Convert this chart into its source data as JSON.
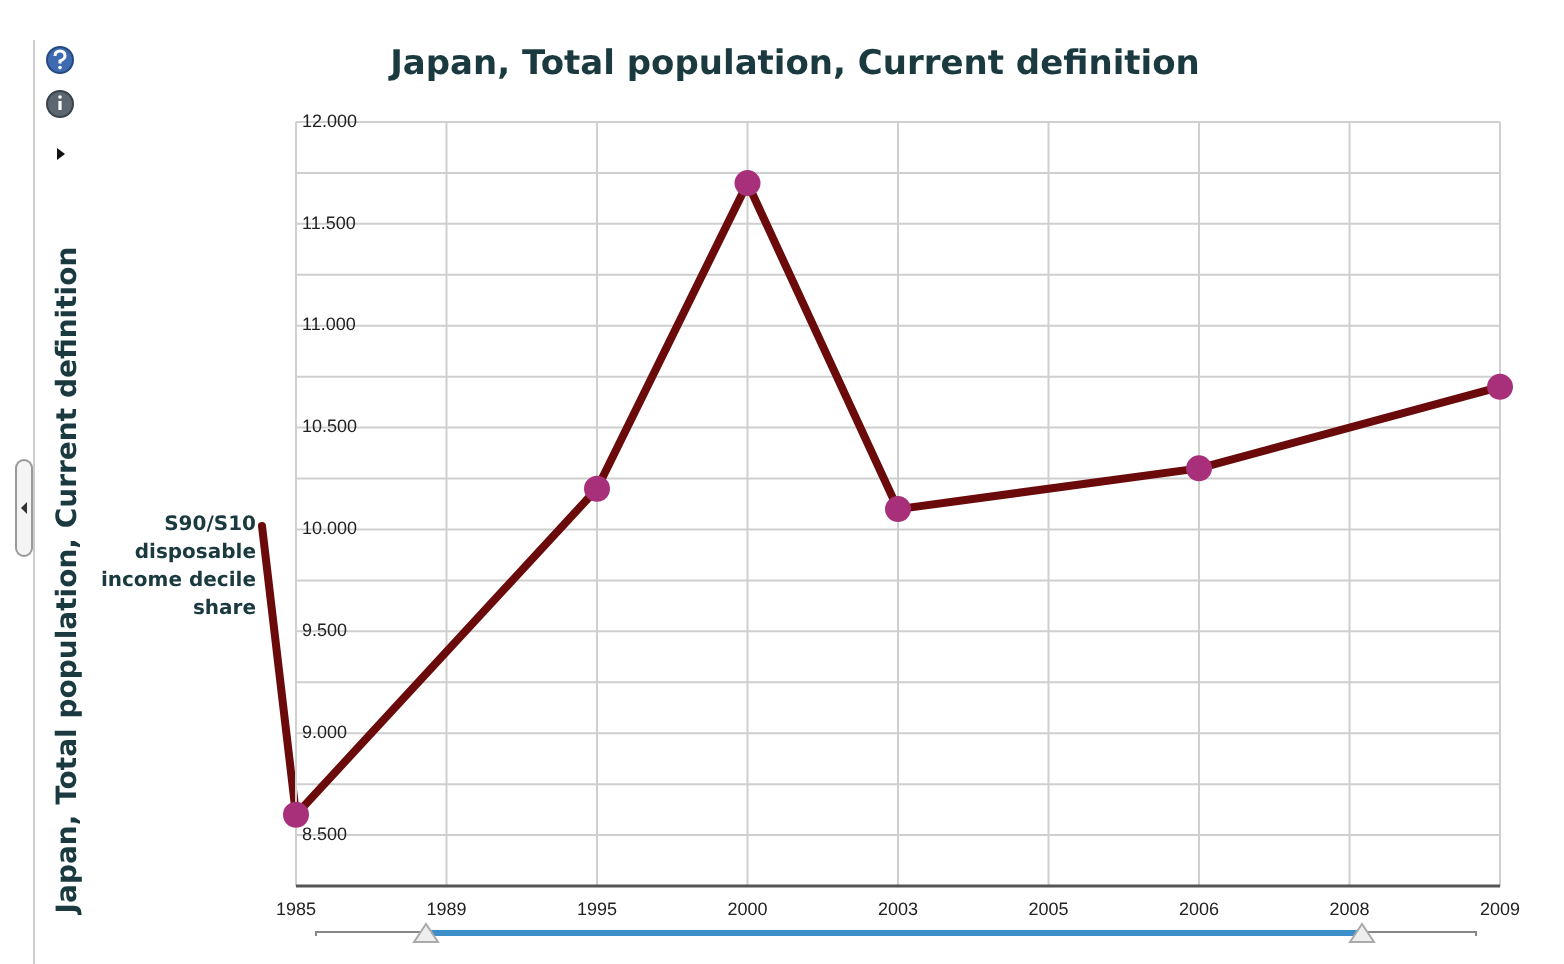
{
  "chart_data": {
    "type": "line",
    "title": "Japan, Total population, Current definition",
    "annotations": [
      "Japan, Total population, Current definition"
    ],
    "categories": [
      "1985",
      "1989",
      "1995",
      "2000",
      "2003",
      "2005",
      "2006",
      "2008",
      "2009"
    ],
    "series": [
      {
        "name": "S90/S10 disposable income decile share",
        "color": "#6b0a0a",
        "values": [
          8.6,
          null,
          10.2,
          11.7,
          10.1,
          null,
          10.3,
          null,
          10.7
        ]
      }
    ],
    "ylim": [
      8.25,
      12.0
    ],
    "yticks": [
      {
        "value": 8.5,
        "label": "8.500"
      },
      {
        "value": 8.75,
        "label": null
      },
      {
        "value": 9.0,
        "label": "9.000"
      },
      {
        "value": 9.25,
        "label": null
      },
      {
        "value": 9.5,
        "label": "9.500"
      },
      {
        "value": 9.75,
        "label": null
      },
      {
        "value": 10.0,
        "label": "10.000"
      },
      {
        "value": 10.25,
        "label": null
      },
      {
        "value": 10.5,
        "label": "10.500"
      },
      {
        "value": 10.75,
        "label": null
      },
      {
        "value": 11.0,
        "label": "11.000"
      },
      {
        "value": 11.25,
        "label": null
      },
      {
        "value": 11.5,
        "label": "11.500"
      },
      {
        "value": 11.75,
        "label": null
      },
      {
        "value": 12.0,
        "label": "12.000"
      }
    ],
    "grid": true,
    "legend": false,
    "marker": "circle",
    "line_style": "solid"
  }
}
